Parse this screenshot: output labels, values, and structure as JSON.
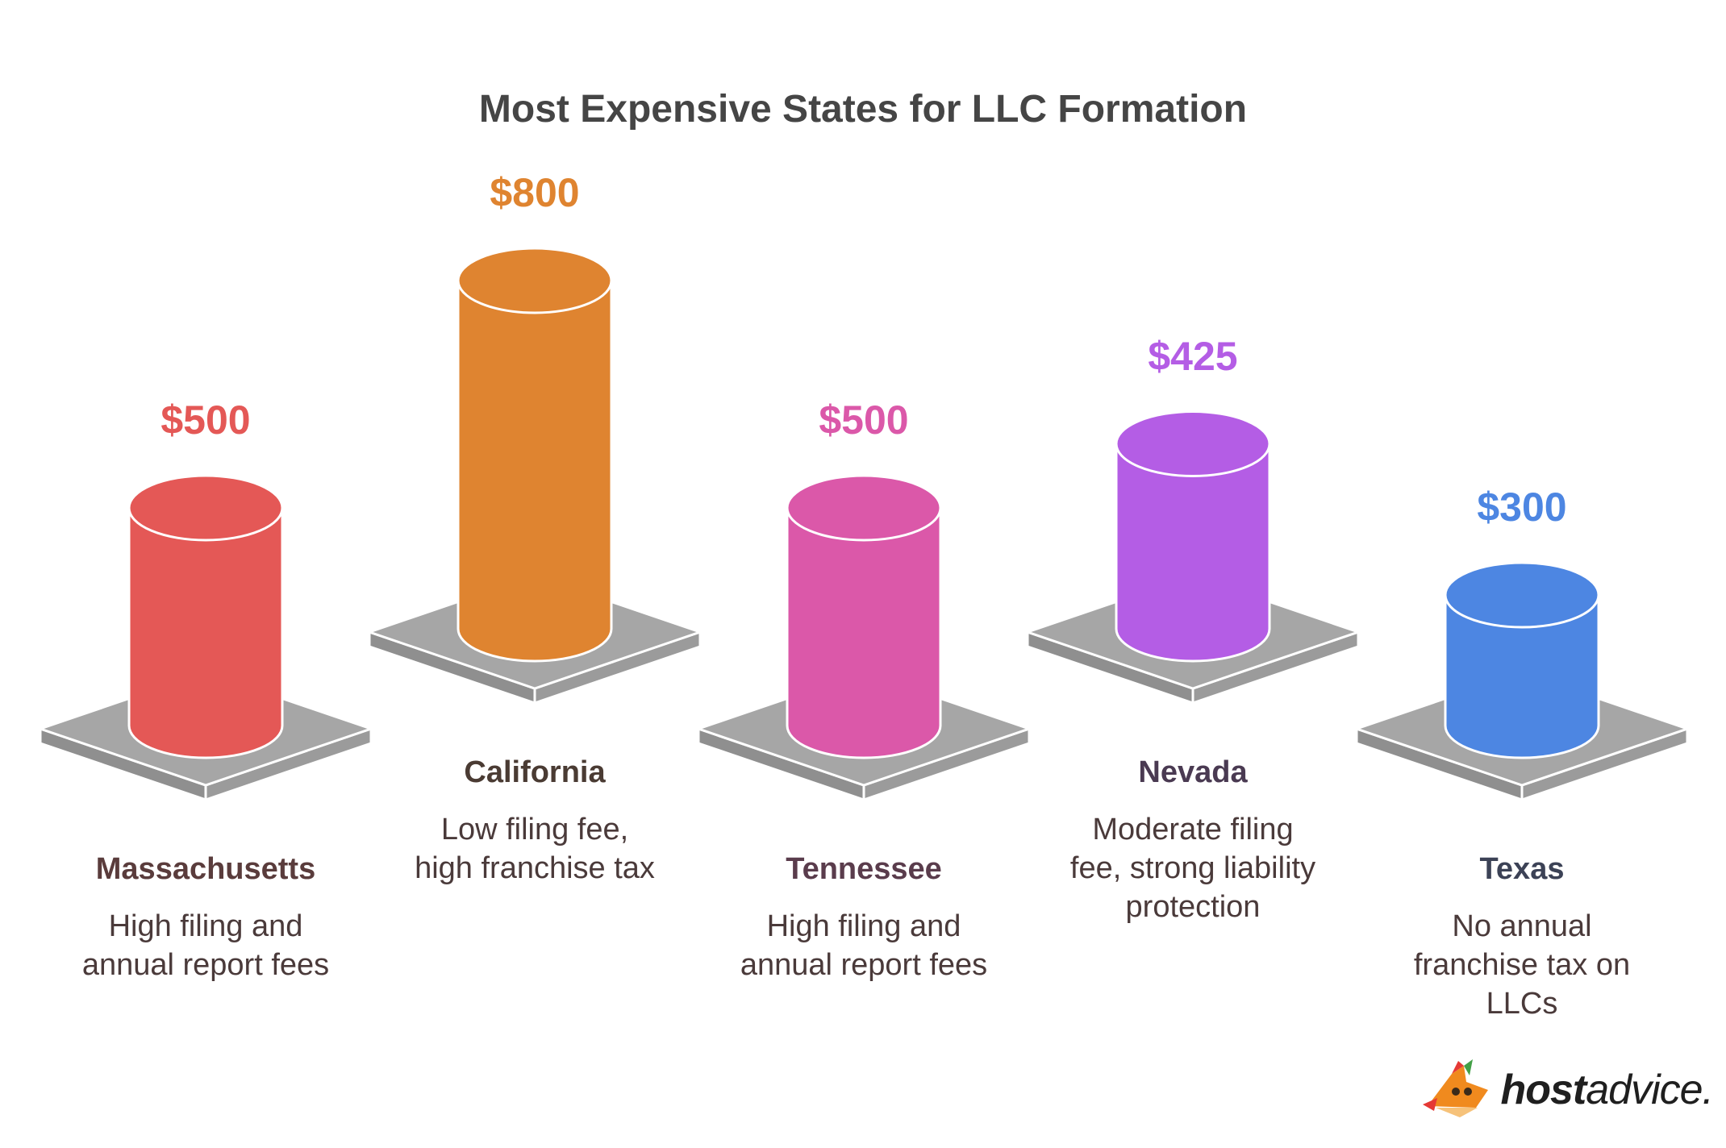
{
  "chart_data": {
    "type": "bar",
    "title": "Most Expensive States for LLC Formation",
    "categories": [
      "Massachusetts",
      "California",
      "Tennessee",
      "Nevada",
      "Texas"
    ],
    "values": [
      500,
      800,
      500,
      425,
      300
    ],
    "value_labels": [
      "$500",
      "$800",
      "$500",
      "$425",
      "$300"
    ],
    "descriptions": [
      "High filing and\nannual report fees",
      "Low filing fee,\nhigh franchise tax",
      "High filing and\nannual report fees",
      "Moderate filing\nfee, strong liability\nprotection",
      "No annual\nfranchise tax on\nLLCs"
    ],
    "colors": [
      "#e45856",
      "#df8430",
      "#db58a9",
      "#b45de5",
      "#4d86e2"
    ],
    "label_colors": [
      "#e45856",
      "#df8430",
      "#db58a9",
      "#b45de5",
      "#4d86e2"
    ],
    "state_label_colors": [
      "#5a3c3c",
      "#4a3b33",
      "#5a3c4c",
      "#4a3a52",
      "#3c4256"
    ],
    "base_color": "#a6a6a6",
    "ylim": [
      0,
      800
    ],
    "grid": false,
    "legend": "none"
  },
  "brand": {
    "name_bold": "host",
    "name_rest": "advice."
  }
}
